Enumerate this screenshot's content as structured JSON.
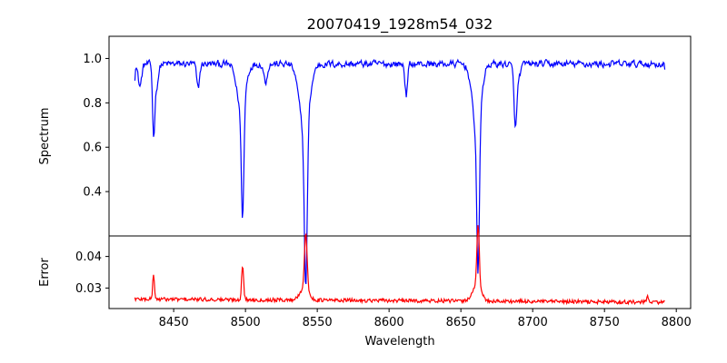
{
  "chart_data": [
    {
      "type": "line",
      "panel": "top",
      "title": "20070419_1928m54_032",
      "xlabel": "",
      "ylabel": "Spectrum",
      "xlim": [
        8405,
        8810
      ],
      "ylim": [
        0.2,
        1.1
      ],
      "yticks": [
        0.4,
        0.6,
        0.8,
        1.0
      ],
      "ytick_labels": [
        "0.4",
        "0.6",
        "0.8",
        "1.0"
      ],
      "line_color": "#0000ff",
      "baseline": {
        "x_start": 8423,
        "x_end": 8792,
        "base": 0.975,
        "noise": 0.025,
        "start_value": 0.9,
        "end_value": 0.95
      },
      "features": [
        {
          "x": 8426.5,
          "depth": 0.1,
          "width": 1.2
        },
        {
          "x": 8436,
          "depth": 0.26,
          "width": 0.7
        },
        {
          "x": 8437.5,
          "depth": 0.12,
          "width": 1.5
        },
        {
          "x": 8467,
          "depth": 0.11,
          "width": 1.0
        },
        {
          "x": 8498,
          "depth": 0.5,
          "width": 0.9
        },
        {
          "x": 8497,
          "depth": 0.2,
          "width": 3.0
        },
        {
          "x": 8514,
          "depth": 0.08,
          "width": 1.2
        },
        {
          "x": 8542,
          "depth": 0.72,
          "width": 1.0
        },
        {
          "x": 8541,
          "depth": 0.3,
          "width": 3.5
        },
        {
          "x": 8612,
          "depth": 0.14,
          "width": 0.9
        },
        {
          "x": 8662,
          "depth": 0.66,
          "width": 0.9
        },
        {
          "x": 8661,
          "depth": 0.3,
          "width": 3.0
        },
        {
          "x": 8688,
          "depth": 0.22,
          "width": 0.9
        },
        {
          "x": 8689,
          "depth": 0.08,
          "width": 2.0
        }
      ]
    },
    {
      "type": "line",
      "panel": "bottom",
      "title": "",
      "xlabel": "Wavelength",
      "ylabel": "Error",
      "xlim": [
        8405,
        8810
      ],
      "ylim": [
        0.0235,
        0.0465
      ],
      "xticks": [
        8450,
        8500,
        8550,
        8600,
        8650,
        8700,
        8750,
        8800
      ],
      "xtick_labels": [
        "8450",
        "8500",
        "8550",
        "8600",
        "8650",
        "8700",
        "8750",
        "8800"
      ],
      "yticks": [
        0.03,
        0.04
      ],
      "ytick_labels": [
        "0.03",
        "0.04"
      ],
      "line_color": "#ff0000",
      "baseline": {
        "x_start": 8423,
        "x_end": 8792,
        "base_start": 0.0265,
        "base_end": 0.0255,
        "noise": 0.0006,
        "start_value": 0.027,
        "end_value": 0.0258
      },
      "features": [
        {
          "x": 8436,
          "height": 0.008,
          "width": 0.6
        },
        {
          "x": 8498,
          "height": 0.011,
          "width": 0.7
        },
        {
          "x": 8542,
          "height": 0.0175,
          "width": 0.9
        },
        {
          "x": 8541,
          "height": 0.004,
          "width": 3.0
        },
        {
          "x": 8662,
          "height": 0.02,
          "width": 0.8
        },
        {
          "x": 8661,
          "height": 0.005,
          "width": 3.0
        },
        {
          "x": 8780,
          "height": 0.002,
          "width": 0.6
        }
      ]
    }
  ]
}
